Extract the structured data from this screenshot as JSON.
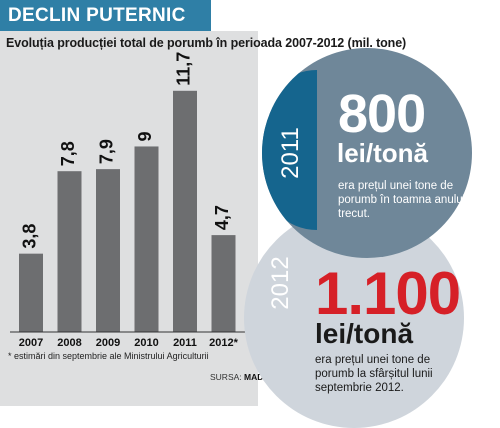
{
  "header": {
    "title": "DECLIN PUTERNIC"
  },
  "chart_data": {
    "type": "bar",
    "title": "Evoluția producției total de porumb în perioada 2007-2012 (mil. tone)",
    "categories": [
      "2007",
      "2008",
      "2009",
      "2010",
      "2011",
      "2012*"
    ],
    "values": [
      3.8,
      7.8,
      7.9,
      9,
      11.7,
      4.7
    ],
    "value_labels": [
      "3,8",
      "7,8",
      "7,9",
      "9",
      "11,7",
      "4,7"
    ],
    "xlabel": "",
    "ylabel": "",
    "ylim": [
      0,
      13
    ],
    "grid": false,
    "bar_color": "#6d6e70"
  },
  "footnote": "* estimări din septembrie ale Ministrului Agriculturii",
  "source": {
    "label": "SURSA:",
    "value": "MADR"
  },
  "prices": [
    {
      "year": "2011",
      "value": "800",
      "unit": "lei/tonă",
      "description": "era prețul unei tone de porumb în toamna anului trecut."
    },
    {
      "year": "2012",
      "value": "1.100",
      "unit": "lei/tonă",
      "description": "era prețul unei tone de porumb la sfârșitul lunii septembrie 2012."
    }
  ],
  "colors": {
    "accent": "#2f7fa6",
    "circle_2011": "#6f8799",
    "circle_2012": "#cfd5dc",
    "highlight": "#d62027"
  }
}
